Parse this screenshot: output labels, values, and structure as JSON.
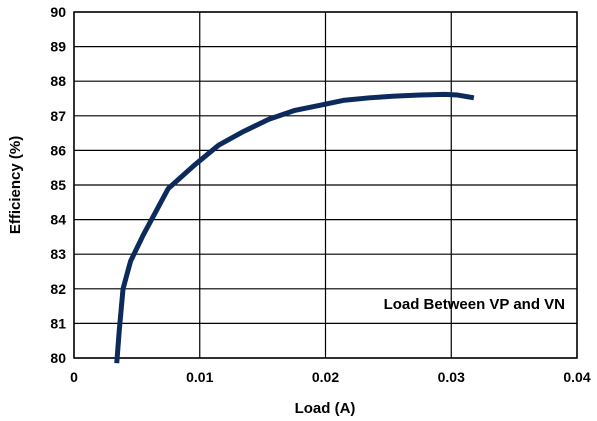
{
  "chart_data": {
    "type": "line",
    "title": "",
    "xlabel": "Load (A)",
    "ylabel": "Efficiency (%)",
    "xlim": [
      0,
      0.04
    ],
    "ylim": [
      80,
      90
    ],
    "x_ticks": [
      "0",
      "0.01",
      "0.02",
      "0.03",
      "0.04"
    ],
    "y_ticks": [
      "80",
      "81",
      "82",
      "83",
      "84",
      "85",
      "86",
      "87",
      "88",
      "89",
      "90"
    ],
    "x_tick_values": [
      0,
      0.01,
      0.02,
      0.03,
      0.04
    ],
    "y_tick_values": [
      80,
      81,
      82,
      83,
      84,
      85,
      86,
      87,
      88,
      89,
      90
    ],
    "grid": true,
    "annotation": "Load Between VP and VN",
    "line_color": "#0d2a5c",
    "series": [
      {
        "x": [
          0.0034,
          0.0036,
          0.0039,
          0.0045,
          0.0055,
          0.0075,
          0.0095,
          0.0115,
          0.0135,
          0.0155,
          0.0175,
          0.0195,
          0.0215,
          0.0235,
          0.0255,
          0.0275,
          0.0295,
          0.0305,
          0.0318
        ],
        "y": [
          79.85,
          80.8,
          82.0,
          82.8,
          83.55,
          84.9,
          85.55,
          86.15,
          86.55,
          86.9,
          87.15,
          87.3,
          87.45,
          87.52,
          87.57,
          87.6,
          87.62,
          87.6,
          87.52
        ]
      }
    ]
  }
}
